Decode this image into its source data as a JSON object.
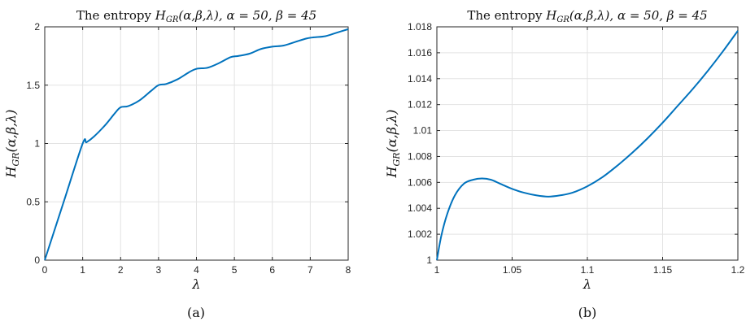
{
  "chart_data": [
    {
      "type": "line",
      "title": "The entropy H_GR(α,β,λ), α = 50, β = 45",
      "xlabel": "λ",
      "ylabel": "H_GR(α,β,λ)",
      "xlim": [
        0,
        8
      ],
      "ylim": [
        0,
        2
      ],
      "xticks": [
        "0",
        "1",
        "2",
        "3",
        "4",
        "5",
        "6",
        "7",
        "8"
      ],
      "yticks": [
        "0",
        "0.5",
        "1",
        "1.5",
        "2"
      ],
      "grid": true,
      "caption": "(a)",
      "series": [
        {
          "x": [
            0,
            0.5,
            1.0,
            1.1,
            1.3,
            1.6,
            1.85,
            2.0,
            2.2,
            2.5,
            2.8,
            3.0,
            3.2,
            3.5,
            3.8,
            4.0,
            4.3,
            4.6,
            4.9,
            5.1,
            5.4,
            5.7,
            6.0,
            6.3,
            6.6,
            6.9,
            7.1,
            7.4,
            7.7,
            8.0
          ],
          "y": [
            0,
            0.5,
            1.0,
            1.01,
            1.06,
            1.16,
            1.26,
            1.31,
            1.32,
            1.37,
            1.45,
            1.5,
            1.51,
            1.55,
            1.61,
            1.64,
            1.65,
            1.69,
            1.74,
            1.75,
            1.77,
            1.81,
            1.83,
            1.84,
            1.87,
            1.9,
            1.91,
            1.92,
            1.95,
            1.98
          ]
        }
      ]
    },
    {
      "type": "line",
      "title": "The entropy H_GR(α,β,λ), α = 50, β = 45",
      "xlabel": "λ",
      "ylabel": "H_GR(α,β,λ)",
      "xlim": [
        1,
        1.2
      ],
      "ylim": [
        1,
        1.018
      ],
      "xticks": [
        "1",
        "1.05",
        "1.1",
        "1.15",
        "1.2"
      ],
      "yticks": [
        "1",
        "1.002",
        "1.004",
        "1.006",
        "1.008",
        "1.01",
        "1.012",
        "1.014",
        "1.016",
        "1.018"
      ],
      "grid": true,
      "caption": "(b)",
      "series": [
        {
          "x": [
            1.0,
            1.003,
            1.007,
            1.012,
            1.018,
            1.024,
            1.03,
            1.036,
            1.042,
            1.05,
            1.058,
            1.066,
            1.074,
            1.082,
            1.09,
            1.1,
            1.11,
            1.12,
            1.13,
            1.14,
            1.15,
            1.16,
            1.17,
            1.18,
            1.19,
            1.2
          ],
          "y": [
            1.0,
            1.0019,
            1.0036,
            1.005,
            1.0059,
            1.0062,
            1.0063,
            1.0062,
            1.0059,
            1.0055,
            1.0052,
            1.005,
            1.0049,
            1.005,
            1.0052,
            1.0057,
            1.0064,
            1.0073,
            1.0083,
            1.0094,
            1.0106,
            1.0119,
            1.0132,
            1.0146,
            1.0161,
            1.0177
          ]
        }
      ]
    }
  ]
}
